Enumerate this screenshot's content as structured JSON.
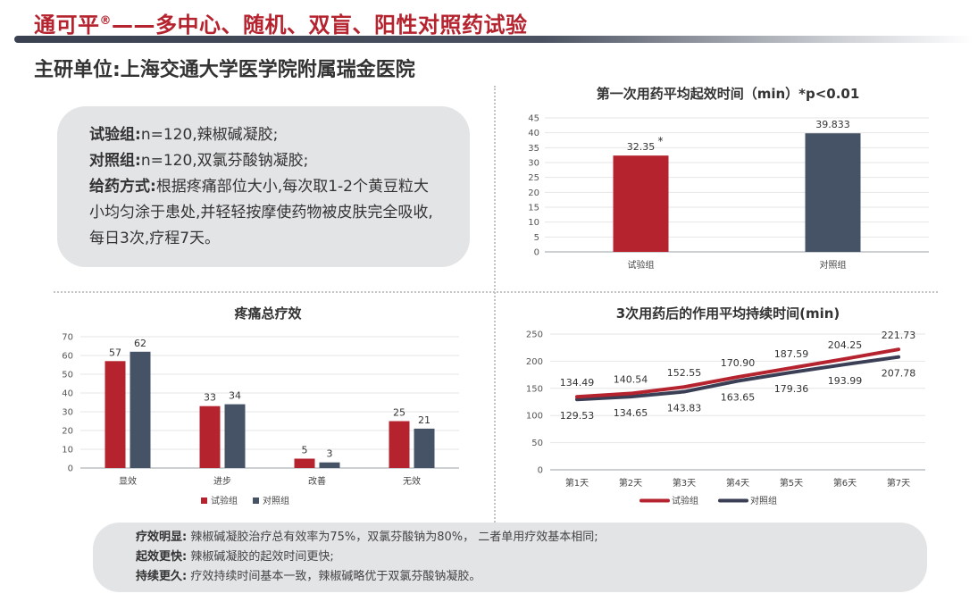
{
  "header": {
    "title_main": "通可平",
    "title_mark": "®",
    "title_rest": "——多中心、随机、双盲、阳性对照药试验",
    "subtitle": "主研单位:上海交通大学医学院附属瑞金医院"
  },
  "info": {
    "line1_key": "试验组:",
    "line1_val": "n=120,辣椒碱凝胶;",
    "line2_key": "对照组:",
    "line2_val": "n=120,双氯芬酸钠凝胶;",
    "line3_key": "给药方式:",
    "line3_val": "根据疼痛部位大小,每次取1-2个黄豆粒大小均匀涂于患处,并轻轻按摩使药物被皮肤完全吸收,每日3次,疗程7天。"
  },
  "colors": {
    "red": "#b5232f",
    "navy": "#465366",
    "axis": "#9aa0a6",
    "grid": "#e6e6e6"
  },
  "chart_data": [
    {
      "type": "bar",
      "title": "第一次用药平均起效时间（min）*p<0.01",
      "categories": [
        "试验组",
        "对照组"
      ],
      "values": [
        32.35,
        39.833
      ],
      "labels": [
        "32.35",
        "39.833"
      ],
      "annotation": "*",
      "colors": [
        "#b5232f",
        "#465366"
      ],
      "ylim": [
        0,
        45
      ],
      "yticks": [
        0,
        5,
        10,
        15,
        20,
        25,
        30,
        35,
        40,
        45
      ]
    },
    {
      "type": "bar",
      "title": "疼痛总疗效",
      "categories": [
        "显效",
        "进步",
        "改善",
        "无效"
      ],
      "series": [
        {
          "name": "试验组",
          "values": [
            57,
            33,
            5,
            25
          ],
          "color": "#b5232f"
        },
        {
          "name": "对照组",
          "values": [
            62,
            34,
            3,
            21
          ],
          "color": "#465366"
        }
      ],
      "ylim": [
        0,
        70
      ],
      "yticks": [
        0,
        10,
        20,
        30,
        40,
        50,
        60,
        70
      ],
      "legend": "bottom"
    },
    {
      "type": "line",
      "title": "3次用药后的作用平均持续时间(min)",
      "categories": [
        "第1天",
        "第2天",
        "第3天",
        "第4天",
        "第5天",
        "第6天",
        "第7天"
      ],
      "series": [
        {
          "name": "试验组",
          "values": [
            134.49,
            140.54,
            152.55,
            170.9,
            187.59,
            204.25,
            221.73
          ],
          "labels": [
            "134.49",
            "140.54",
            "152.55",
            "170.90",
            "187.59",
            "204.25",
            "221.73"
          ],
          "color": "#b5232f"
        },
        {
          "name": "对照组",
          "values": [
            129.53,
            134.65,
            143.83,
            163.65,
            179.36,
            193.99,
            207.78
          ],
          "labels": [
            "129.53",
            "134.65",
            "143.83",
            "163.65",
            "179.36",
            "193.99",
            "207.78"
          ],
          "color": "#3a3f55"
        }
      ],
      "ylim": [
        0,
        250
      ],
      "yticks": [
        0,
        50,
        100,
        150,
        200,
        250
      ],
      "legend": "bottom"
    }
  ],
  "summary": {
    "line1_key": "疗效明显:",
    "line1_val": "辣椒碱凝胶治疗总有效率为75%，双氯芬酸钠为80%， 二者单用疗效基本相同;",
    "line2_key": "起效更快:",
    "line2_val": "辣椒碱凝胶的起效时间更快;",
    "line3_key": "持续更久:",
    "line3_val": "疗效持续时间基本一致，辣椒碱略优于双氯芬酸钠凝胶。"
  }
}
